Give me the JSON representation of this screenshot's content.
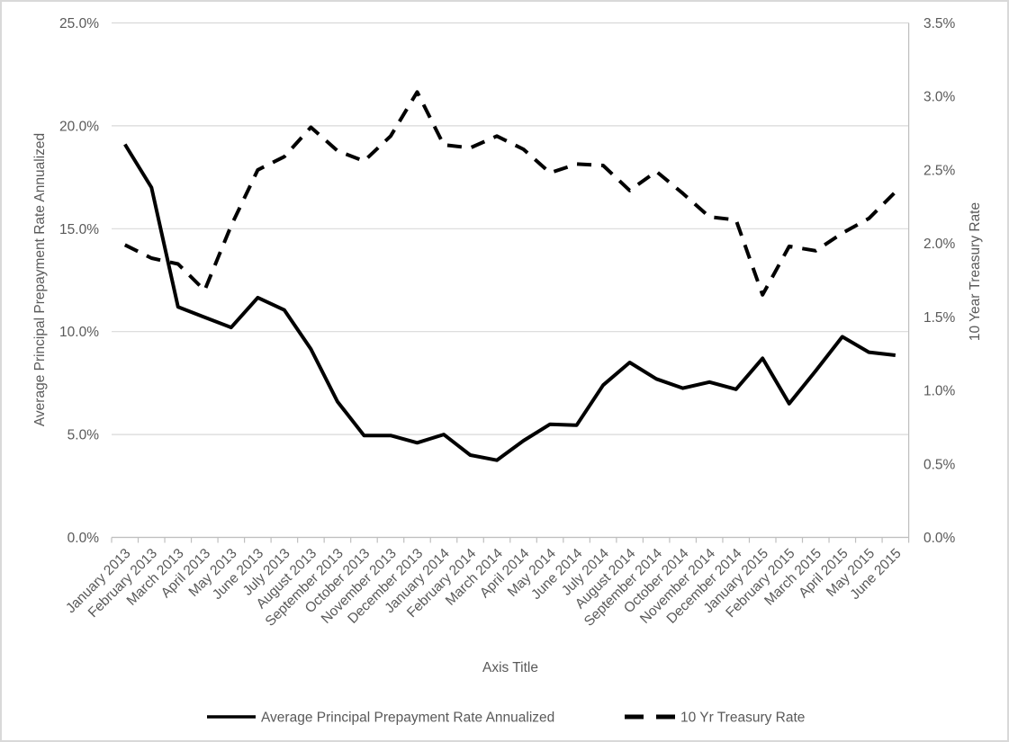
{
  "chart_data": {
    "type": "line",
    "title": "",
    "x_categories": [
      "January 2013",
      "February 2013",
      "March 2013",
      "April 2013",
      "May 2013",
      "June 2013",
      "July 2013",
      "August 2013",
      "September 2013",
      "October 2013",
      "November 2013",
      "December 2013",
      "January 2014",
      "February 2014",
      "March 2014",
      "April 2014",
      "May 2014",
      "June 2014",
      "July 2014",
      "August 2014",
      "September 2014",
      "October 2014",
      "November 2014",
      "December 2014",
      "January 2015",
      "February 2015",
      "March 2015",
      "April 2015",
      "May 2015",
      "June 2015"
    ],
    "series": [
      {
        "name": "Average Principal Prepayment Rate Annualized",
        "axis": "left",
        "style": "solid",
        "color": "#000000",
        "values": [
          19.1,
          17.0,
          11.2,
          10.7,
          10.2,
          11.65,
          11.05,
          9.15,
          6.6,
          4.95,
          4.95,
          4.6,
          5.0,
          4.0,
          3.75,
          4.7,
          5.5,
          5.45,
          7.4,
          8.5,
          7.7,
          7.25,
          7.55,
          7.2,
          8.7,
          6.5,
          8.1,
          9.75,
          9.0,
          8.85
        ]
      },
      {
        "name": "10 Yr Treasury Rate",
        "axis": "right",
        "style": "dashed",
        "color": "#000000",
        "values": [
          1.99,
          1.9,
          1.86,
          1.68,
          2.12,
          2.5,
          2.59,
          2.79,
          2.63,
          2.56,
          2.73,
          3.03,
          2.67,
          2.65,
          2.73,
          2.64,
          2.48,
          2.54,
          2.53,
          2.36,
          2.49,
          2.34,
          2.18,
          2.16,
          1.65,
          1.98,
          1.95,
          2.07,
          2.17,
          2.35
        ]
      }
    ],
    "left_axis": {
      "title": "Average Principal Prepayment Rate Annualized",
      "min": 0,
      "max": 25,
      "ticks": [
        "0.0%",
        "5.0%",
        "10.0%",
        "15.0%",
        "20.0%",
        "25.0%"
      ]
    },
    "right_axis": {
      "title": "10 Year Treasury Rate",
      "min": 0,
      "max": 3.5,
      "ticks": [
        "0.0%",
        "0.5%",
        "1.0%",
        "1.5%",
        "2.0%",
        "2.5%",
        "3.0%",
        "3.5%"
      ]
    },
    "x_axis": {
      "title": "Axis Title"
    },
    "legend": {
      "position": "bottom",
      "entries": [
        "Average Principal Prepayment Rate Annualized",
        "10 Yr Treasury Rate"
      ]
    },
    "grid": true,
    "colors": {
      "grid": "#D9D9D9",
      "axis_line": "#BFBFBF",
      "text": "#595959",
      "series": "#000000",
      "background": "#FFFFFF",
      "border": "#D9D9D9"
    }
  }
}
